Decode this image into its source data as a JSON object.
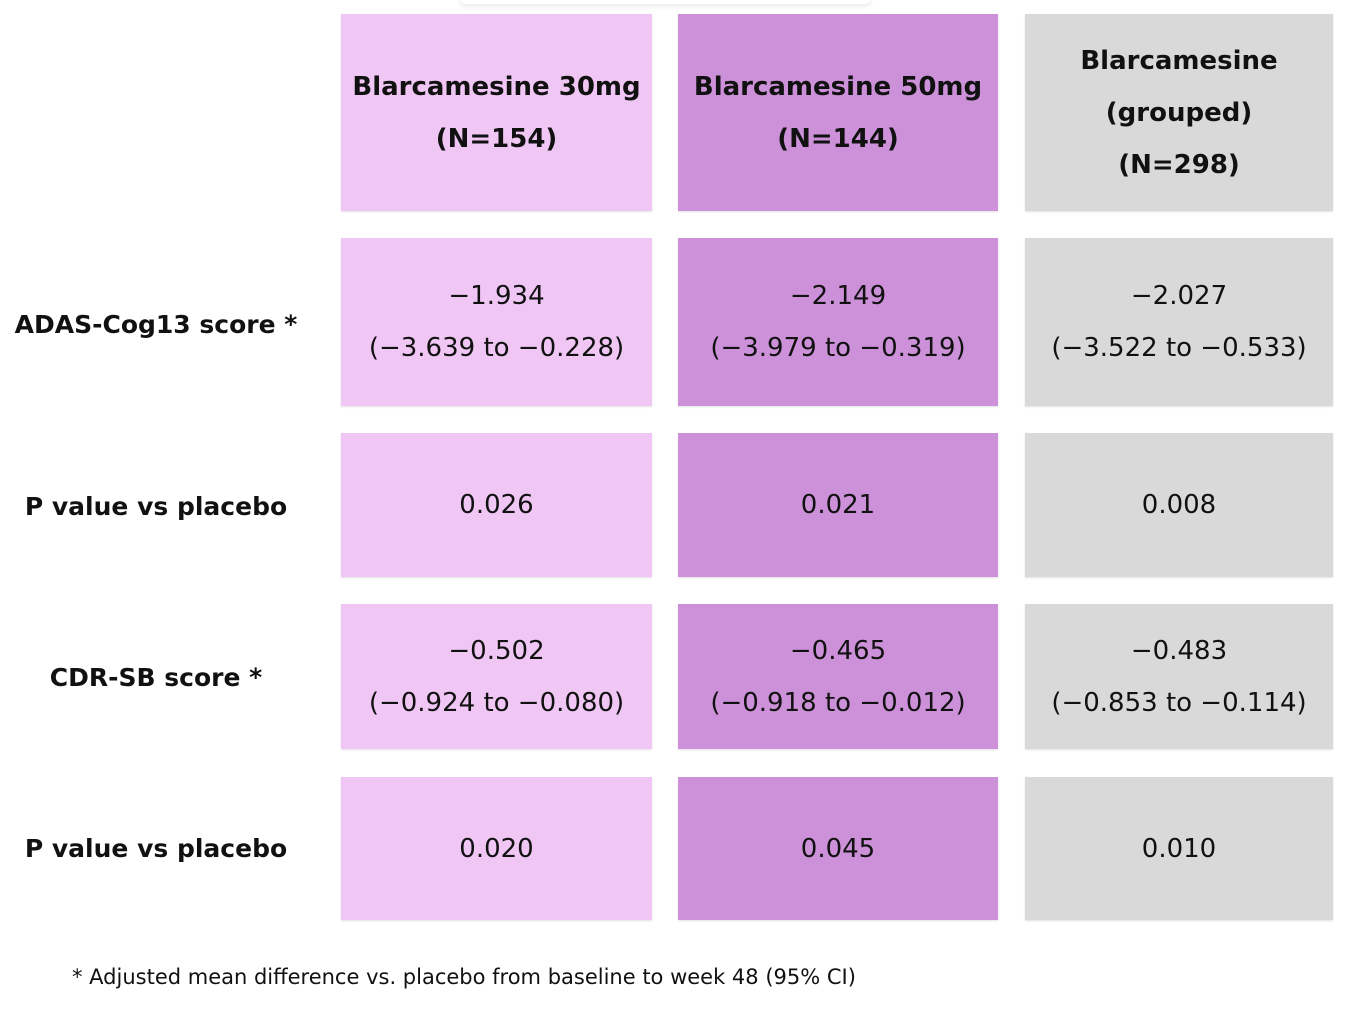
{
  "chart_data": {
    "type": "table",
    "columns": [
      {
        "name": "Blarcamesine 30mg",
        "n": "(N=154)",
        "color": "#f0c6f4"
      },
      {
        "name": "Blarcamesine 50mg",
        "n": "(N=144)",
        "color": "#cc91d8"
      },
      {
        "name_line1": "Blarcamesine",
        "name_line2": "(grouped)",
        "n": "(N=298)",
        "color": "#d9d9d9"
      }
    ],
    "rows": [
      {
        "label": "ADAS-Cog13 score *",
        "cells": [
          {
            "value": "−1.934",
            "ci": "(−3.639 to −0.228)"
          },
          {
            "value": "−2.149",
            "ci": "(−3.979 to −0.319)"
          },
          {
            "value": "−2.027",
            "ci": "(−3.522 to −0.533)"
          }
        ]
      },
      {
        "label": "P value vs placebo",
        "cells": [
          {
            "value": "0.026"
          },
          {
            "value": "0.021"
          },
          {
            "value": "0.008"
          }
        ]
      },
      {
        "label": "CDR-SB score *",
        "cells": [
          {
            "value": "−0.502",
            "ci": "(−0.924 to −0.080)"
          },
          {
            "value": "−0.465",
            "ci": "(−0.918 to −0.012)"
          },
          {
            "value": "−0.483",
            "ci": "(−0.853 to −0.114)"
          }
        ]
      },
      {
        "label": "P value vs placebo",
        "cells": [
          {
            "value": "0.020"
          },
          {
            "value": "0.045"
          },
          {
            "value": "0.010"
          }
        ]
      }
    ],
    "footnote": "* Adjusted mean difference vs. placebo from baseline to week 48 (95% CI)"
  }
}
